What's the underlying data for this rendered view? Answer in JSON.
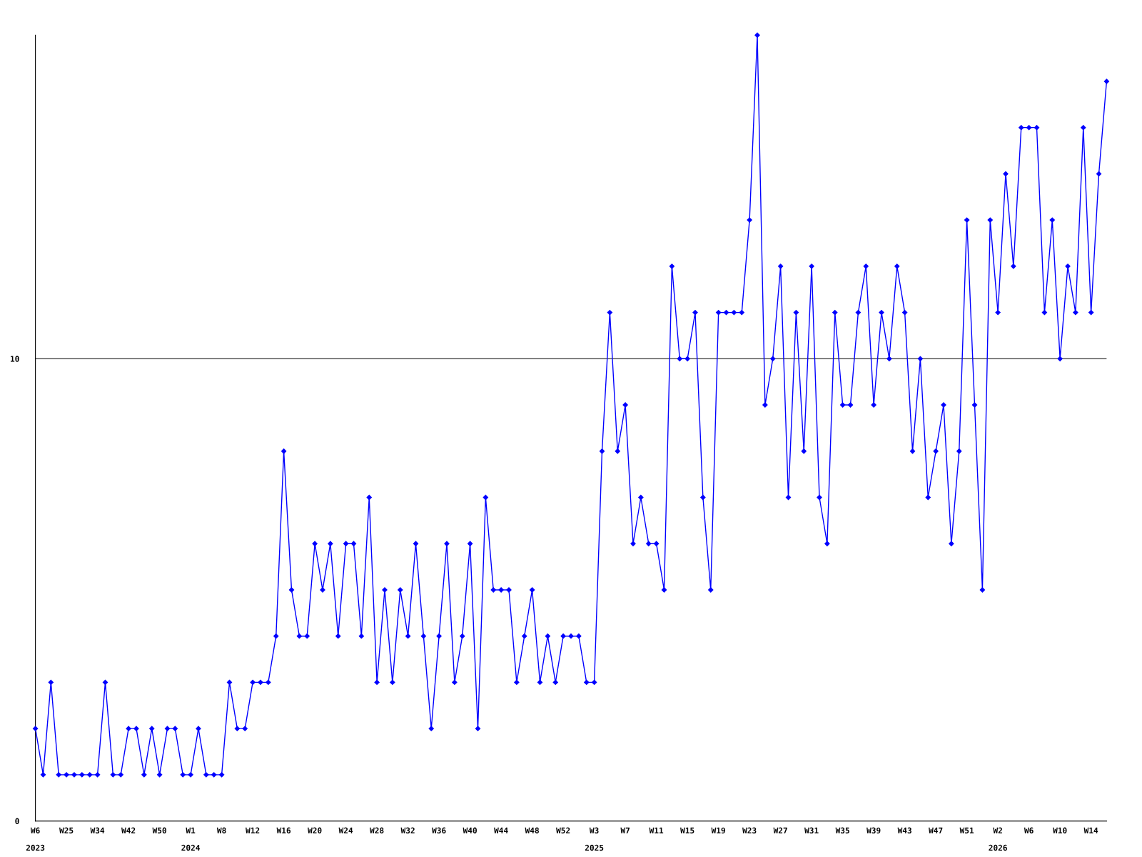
{
  "chart_data": {
    "type": "line",
    "categories": [
      "W6\n2023",
      null,
      null,
      null,
      "W25",
      null,
      null,
      null,
      "W34",
      null,
      null,
      null,
      "W42",
      null,
      null,
      null,
      "W50",
      null,
      null,
      null,
      "W1\n2024",
      null,
      null,
      null,
      "W8",
      null,
      null,
      null,
      "W12",
      null,
      null,
      null,
      "W16",
      null,
      null,
      null,
      "W20",
      null,
      null,
      null,
      "W24",
      null,
      null,
      null,
      "W28",
      null,
      null,
      null,
      "W32",
      null,
      null,
      null,
      "W36",
      null,
      null,
      null,
      "W40",
      null,
      null,
      null,
      "W44",
      null,
      null,
      null,
      "W48",
      null,
      null,
      null,
      "W52",
      null,
      null,
      null,
      "W3\n2025",
      null,
      null,
      null,
      "W7",
      null,
      null,
      null,
      "W11",
      null,
      null,
      null,
      "W15",
      null,
      null,
      null,
      "W19",
      null,
      null,
      null,
      "W23",
      null,
      null,
      null,
      "W27",
      null,
      null,
      null,
      "W31",
      null,
      null,
      null,
      "W35",
      null,
      null,
      null,
      "W39",
      null,
      null,
      null,
      "W43",
      null,
      null,
      null,
      "W47",
      null,
      null,
      null,
      "W51",
      null,
      null,
      null,
      "W2\n2026",
      null,
      null,
      null,
      "W6",
      null,
      null,
      null,
      "W10",
      null,
      null,
      null,
      "W14",
      null,
      null
    ],
    "series": [
      {
        "color": "#0000ff",
        "values": [
          2,
          1,
          3,
          1,
          1,
          1,
          1,
          1,
          1,
          3,
          1,
          1,
          2,
          2,
          1,
          2,
          1,
          2,
          2,
          1,
          1,
          2,
          1,
          1,
          1,
          3,
          2,
          2,
          3,
          3,
          3,
          4,
          8,
          5,
          4,
          4,
          6,
          5,
          6,
          4,
          6,
          6,
          4,
          7,
          3,
          5,
          3,
          5,
          4,
          6,
          4,
          2,
          4,
          6,
          3,
          4,
          6,
          2,
          7,
          5,
          5,
          5,
          3,
          4,
          5,
          3,
          4,
          3,
          4,
          4,
          4,
          3,
          3,
          8,
          11,
          8,
          9,
          6,
          7,
          6,
          6,
          5,
          12,
          10,
          10,
          11,
          7,
          5,
          11,
          11,
          11,
          11,
          13,
          17,
          9,
          10,
          12,
          7,
          11,
          8,
          12,
          7,
          6,
          11,
          9,
          9,
          11,
          12,
          9,
          11,
          10,
          12,
          11,
          8,
          10,
          7,
          8,
          9,
          6,
          8,
          13,
          9,
          5,
          13,
          11,
          14,
          12,
          15,
          15,
          15,
          11,
          13,
          10,
          12,
          11,
          15,
          11,
          14,
          16
        ]
      }
    ],
    "ylim": [
      0,
      17
    ],
    "yticks": [
      0,
      10
    ],
    "grid": "y",
    "marker": "diamond",
    "line_style": "solid",
    "legend": false
  }
}
